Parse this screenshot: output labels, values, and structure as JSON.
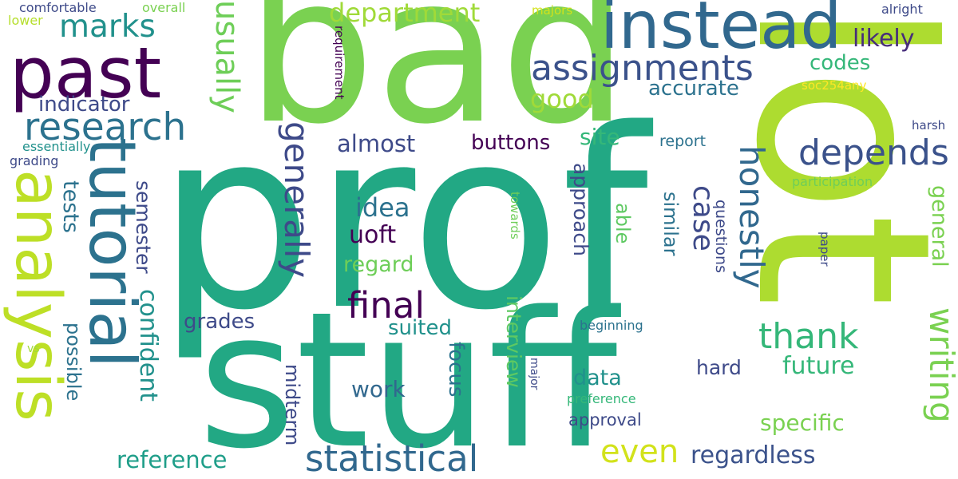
{
  "words": [
    {
      "id": "prof",
      "text": "prof",
      "color": "#22a884"
    },
    {
      "id": "bad",
      "text": "bad",
      "color": "#7ad151"
    },
    {
      "id": "lot",
      "text": "lot",
      "color": "#addc30"
    },
    {
      "id": "stuff",
      "text": "stuff",
      "color": "#22a884"
    },
    {
      "id": "instead",
      "text": "instead",
      "color": "#31688e"
    },
    {
      "id": "past",
      "text": "past",
      "color": "#440154"
    },
    {
      "id": "tutorial",
      "text": "tutorial",
      "color": "#2c728e"
    },
    {
      "id": "analysis",
      "text": "analysis",
      "color": "#bddf26"
    },
    {
      "id": "assignments",
      "text": "assignments",
      "color": "#3b528b"
    },
    {
      "id": "research",
      "text": "research",
      "color": "#2c728e"
    },
    {
      "id": "statistical",
      "text": "statistical",
      "color": "#31688e"
    },
    {
      "id": "depends",
      "text": "depends",
      "color": "#3b528b"
    },
    {
      "id": "final",
      "text": "final",
      "color": "#440154"
    },
    {
      "id": "thank",
      "text": "thank",
      "color": "#35b779"
    },
    {
      "id": "honestly",
      "text": "honestly",
      "color": "#31688e"
    },
    {
      "id": "generally",
      "text": "generally",
      "color": "#3e4a89"
    },
    {
      "id": "usually",
      "text": "usually",
      "color": "#6ece58"
    },
    {
      "id": "writing",
      "text": "writing",
      "color": "#7ad151"
    },
    {
      "id": "even",
      "text": "even",
      "color": "#d2e21b"
    },
    {
      "id": "marks",
      "text": "marks",
      "color": "#21918c"
    },
    {
      "id": "department",
      "text": "department",
      "color": "#a0da39"
    },
    {
      "id": "regardless",
      "text": "regardless",
      "color": "#3b528b"
    },
    {
      "id": "reference",
      "text": "reference",
      "color": "#1f9e89"
    },
    {
      "id": "case",
      "text": "case",
      "color": "#3e4a89"
    },
    {
      "id": "likely",
      "text": "likely",
      "color": "#472d7b"
    },
    {
      "id": "indicator",
      "text": "indicator",
      "color": "#3e4a89"
    },
    {
      "id": "almost",
      "text": "almost",
      "color": "#3e4a89"
    },
    {
      "id": "buttons",
      "text": "buttons",
      "color": "#440154"
    },
    {
      "id": "good",
      "text": "good",
      "color": "#a0da39"
    },
    {
      "id": "accurate",
      "text": "accurate",
      "color": "#2c728e"
    },
    {
      "id": "codes",
      "text": "codes",
      "color": "#35b779"
    },
    {
      "id": "site",
      "text": "site",
      "color": "#35b779"
    },
    {
      "id": "idea",
      "text": "idea",
      "color": "#2c728e"
    },
    {
      "id": "uoft",
      "text": "uoft",
      "color": "#440154"
    },
    {
      "id": "future",
      "text": "future",
      "color": "#35b779"
    },
    {
      "id": "specific",
      "text": "specific",
      "color": "#7ad151"
    },
    {
      "id": "confident",
      "text": "confident",
      "color": "#21918c"
    },
    {
      "id": "tests",
      "text": "tests",
      "color": "#2c728e"
    },
    {
      "id": "semester",
      "text": "semester",
      "color": "#3e4a89"
    },
    {
      "id": "grades",
      "text": "grades",
      "color": "#3e4a89"
    },
    {
      "id": "regard",
      "text": "regard",
      "color": "#6ece58"
    },
    {
      "id": "work",
      "text": "work",
      "color": "#31688e"
    },
    {
      "id": "suited",
      "text": "suited",
      "color": "#21918c"
    },
    {
      "id": "data",
      "text": "data",
      "color": "#21918c"
    },
    {
      "id": "hard",
      "text": "hard",
      "color": "#3e4a89"
    },
    {
      "id": "general",
      "text": "general",
      "color": "#7ad151"
    },
    {
      "id": "possible",
      "text": "possible",
      "color": "#2c728e"
    },
    {
      "id": "midterm",
      "text": "midterm",
      "color": "#3e4a89"
    },
    {
      "id": "focus",
      "text": "focus",
      "color": "#2c728e"
    },
    {
      "id": "interview",
      "text": "interview",
      "color": "#5ec962"
    },
    {
      "id": "approach",
      "text": "approach",
      "color": "#3e4a89"
    },
    {
      "id": "able",
      "text": "able",
      "color": "#5ec962"
    },
    {
      "id": "similar",
      "text": "similar",
      "color": "#2c728e"
    },
    {
      "id": "questions",
      "text": "questions",
      "color": "#3e4a89"
    },
    {
      "id": "approval",
      "text": "approval",
      "color": "#3e4a89"
    },
    {
      "id": "report",
      "text": "report",
      "color": "#2c728e"
    },
    {
      "id": "beginning",
      "text": "beginning",
      "color": "#2c728e"
    },
    {
      "id": "preference",
      "text": "preference",
      "color": "#35b779"
    },
    {
      "id": "participation",
      "text": "participation",
      "color": "#6ece58"
    },
    {
      "id": "harsh",
      "text": "harsh",
      "color": "#3e4a89"
    },
    {
      "id": "alright",
      "text": "alright",
      "color": "#3e4a89"
    },
    {
      "id": "majors",
      "text": "majors",
      "color": "#d2e21b"
    },
    {
      "id": "soc254any",
      "text": "soc254any",
      "color": "#fde725"
    },
    {
      "id": "requirement",
      "text": "requirement",
      "color": "#440154"
    },
    {
      "id": "comfortable",
      "text": "comfortable",
      "color": "#3e4a89"
    },
    {
      "id": "overall",
      "text": "overall",
      "color": "#7ad151"
    },
    {
      "id": "lower",
      "text": "lower",
      "color": "#b5de2b"
    },
    {
      "id": "essentially",
      "text": "essentially",
      "color": "#21918c"
    },
    {
      "id": "grading",
      "text": "grading",
      "color": "#3e4a89"
    },
    {
      "id": "towards",
      "text": "towards",
      "color": "#6ece58"
    },
    {
      "id": "paper",
      "text": "paper",
      "color": "#3e4a89"
    },
    {
      "id": "major",
      "text": "major",
      "color": "#3e4a89"
    },
    {
      "id": "vs",
      "text": "vs",
      "color": "#a0da39"
    }
  ]
}
